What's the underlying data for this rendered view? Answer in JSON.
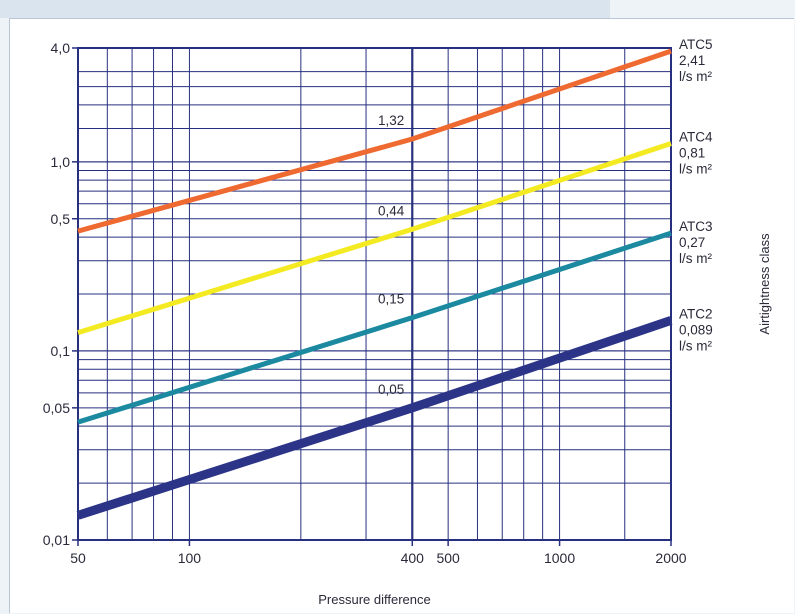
{
  "chart_data": {
    "type": "line",
    "xlabel": "Pressure difference",
    "ylabel": "Airtightness class",
    "x_scale": "log",
    "y_scale": "log",
    "xlim": [
      50,
      2000
    ],
    "ylim": [
      0.01,
      4.0
    ],
    "x_ticks": [
      50,
      100,
      400,
      500,
      1000,
      2000
    ],
    "x_tick_labels": [
      "50",
      "100",
      "400",
      "500",
      "1000",
      "2000"
    ],
    "y_ticks": [
      0.01,
      0.05,
      0.1,
      0.5,
      1.0,
      4.0
    ],
    "y_tick_labels": [
      "0,01",
      "0,05",
      "0,1",
      "0,5",
      "1,0",
      "4,0"
    ],
    "grid": true,
    "colors": {
      "grid": "#27307f",
      "ATC5": "#ee6a31",
      "ATC4": "#f4ea22",
      "ATC3": "#1b8aa0",
      "ATC2": "#2c3488",
      "background": "#ffffff",
      "frame": "#eef3f8"
    },
    "series": [
      {
        "name": "ATC5",
        "side_value": "2,41",
        "side_unit": "l/s m²",
        "ref_label": "1,32",
        "x": [
          50,
          400,
          2000
        ],
        "y": [
          0.43,
          1.32,
          3.85
        ]
      },
      {
        "name": "ATC4",
        "side_value": "0,81",
        "side_unit": "l/s m²",
        "ref_label": "0,44",
        "x": [
          50,
          400,
          2000
        ],
        "y": [
          0.125,
          0.44,
          1.25
        ]
      },
      {
        "name": "ATC3",
        "side_value": "0,27",
        "side_unit": "l/s m²",
        "ref_label": "0,15",
        "x": [
          50,
          400,
          2000
        ],
        "y": [
          0.042,
          0.15,
          0.42
        ]
      },
      {
        "name": "ATC2",
        "side_value": "0,089",
        "side_unit": "l/s m²",
        "ref_label": "0,05",
        "x": [
          50,
          400,
          2000
        ],
        "y": [
          0.0135,
          0.05,
          0.145
        ]
      }
    ]
  }
}
